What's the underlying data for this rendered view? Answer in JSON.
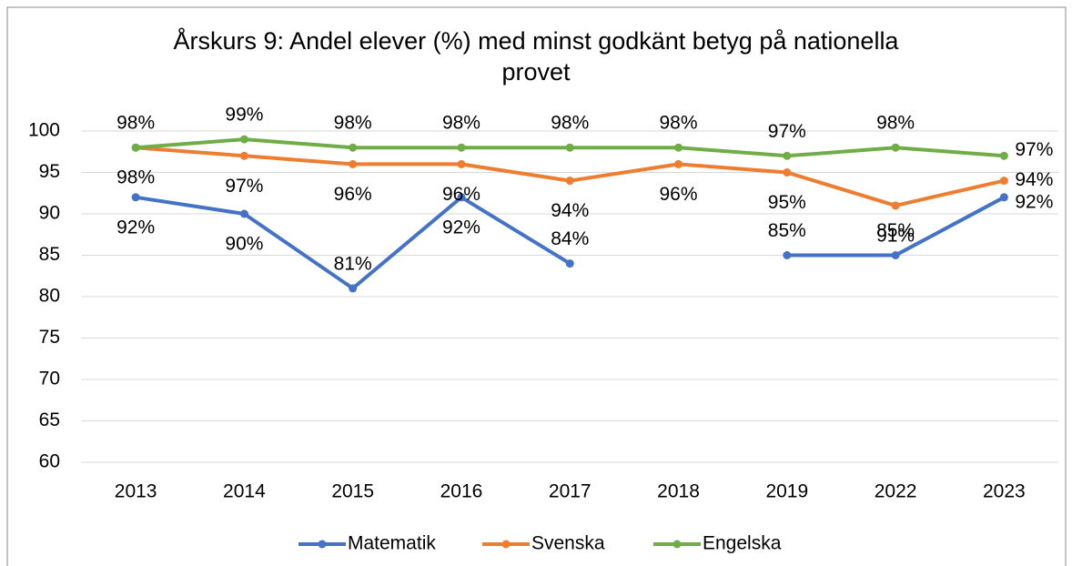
{
  "chart_data": {
    "type": "line",
    "title": "Årskurs 9: Andel elever (%) med minst godkänt betyg på nationella provet",
    "categories": [
      "2013",
      "2014",
      "2015",
      "2016",
      "2017",
      "2018",
      "2019",
      "2022",
      "2023"
    ],
    "series": [
      {
        "name": "Matematik",
        "color": "#4472c4",
        "values": [
          92,
          90,
          81,
          92,
          84,
          null,
          85,
          85,
          92
        ],
        "value_labels": [
          "92%",
          "90%",
          "81%",
          "92%",
          "84%",
          null,
          "85%",
          "85%",
          "92%"
        ]
      },
      {
        "name": "Svenska",
        "color": "#ed7d31",
        "values": [
          98,
          97,
          96,
          96,
          94,
          96,
          95,
          91,
          94
        ],
        "value_labels": [
          "98%",
          "97%",
          "96%",
          "96%",
          "94%",
          "96%",
          "95%",
          "91%",
          "94%"
        ]
      },
      {
        "name": "Engelska",
        "color": "#70ad47",
        "values": [
          98,
          99,
          98,
          98,
          98,
          98,
          97,
          98,
          97
        ],
        "value_labels": [
          "98%",
          "99%",
          "98%",
          "98%",
          "98%",
          "98%",
          "97%",
          "98%",
          "97%"
        ]
      }
    ],
    "ylim": [
      60,
      100
    ],
    "yticks": [
      60,
      65,
      70,
      75,
      80,
      85,
      90,
      95,
      100
    ],
    "grid": true,
    "legend": "bottom"
  }
}
